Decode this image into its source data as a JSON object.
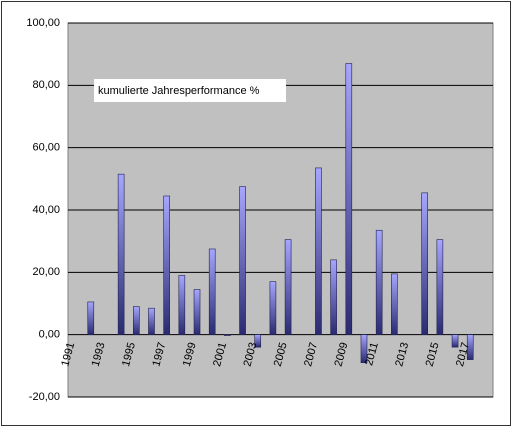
{
  "chart_data": {
    "type": "bar",
    "annotation": "kumulierte Jahresperformance %",
    "categories": [
      "1991",
      null,
      "1993",
      null,
      "1995",
      null,
      "1997",
      null,
      "1999",
      null,
      "2001",
      null,
      "2003",
      null,
      "2005",
      null,
      "2007",
      null,
      "2009",
      null,
      "2011",
      null,
      "2013",
      null,
      "2015",
      null,
      "2017",
      null
    ],
    "values": [
      null,
      10.5,
      null,
      51.5,
      9,
      8.5,
      44.5,
      19,
      14.5,
      27.5,
      -0.3,
      47.5,
      -4,
      17,
      30.5,
      null,
      53.5,
      24,
      87,
      -9,
      33.5,
      19.5,
      null,
      45.5,
      30.5,
      -4,
      -8,
      null
    ],
    "color": "#9999ff",
    "ylim": [
      -20,
      100
    ],
    "yticks": [
      {
        "value": -20,
        "label": "-20,00"
      },
      {
        "value": 0,
        "label": "0,00"
      },
      {
        "value": 20,
        "label": "20,00"
      },
      {
        "value": 40,
        "label": "40,00"
      },
      {
        "value": 60,
        "label": "60,00"
      },
      {
        "value": 80,
        "label": "80,00"
      },
      {
        "value": 100,
        "label": "100,00"
      }
    ],
    "grid": true
  }
}
